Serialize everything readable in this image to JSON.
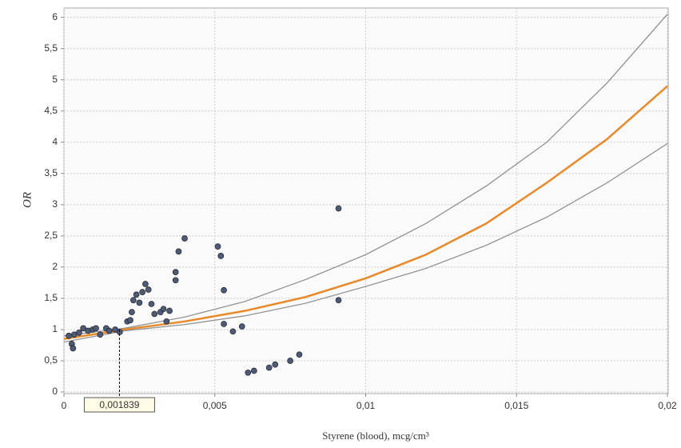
{
  "chart_data": {
    "type": "scatter",
    "xlabel": "Styrene (blood), mcg/cm³",
    "ylabel": "OR",
    "xlim": [
      0,
      0.02
    ],
    "ylim": [
      0,
      6.15
    ],
    "xticks": [
      0,
      {
        "value": 0.005,
        "label": "0,005"
      },
      {
        "value": 0.01,
        "label": "0,01"
      },
      {
        "value": 0.015,
        "label": "0,015"
      },
      {
        "value": 0.02,
        "label": "0,02"
      }
    ],
    "yticks": [
      0,
      {
        "value": 0.5,
        "label": "0,5"
      },
      1,
      {
        "value": 1.5,
        "label": "1,5"
      },
      2,
      {
        "value": 2.5,
        "label": "2,5"
      },
      3,
      {
        "value": 3.5,
        "label": "3,5"
      },
      4,
      {
        "value": 4.5,
        "label": "4,5"
      },
      5,
      {
        "value": 5.5,
        "label": "5,5"
      },
      6
    ],
    "grid": true,
    "points": {
      "color": "#4d5a78",
      "x": [
        0.00016,
        0.00026,
        0.0003,
        0.00034,
        0.0005,
        0.00064,
        0.0008,
        0.00095,
        0.00106,
        0.0012,
        0.0014,
        0.0015,
        0.0017,
        0.00185,
        0.0021,
        0.0022,
        0.00225,
        0.0023,
        0.0024,
        0.0025,
        0.0026,
        0.0027,
        0.0028,
        0.0029,
        0.003,
        0.0032,
        0.0033,
        0.0034,
        0.0035,
        0.0037,
        0.0037,
        0.0038,
        0.004,
        0.0051,
        0.0052,
        0.0053,
        0.0053,
        0.0056,
        0.0059,
        0.0061,
        0.0063,
        0.0068,
        0.007,
        0.0075,
        0.0078,
        0.0091,
        0.0091
      ],
      "y": [
        0.9,
        0.77,
        0.7,
        0.92,
        0.95,
        1.02,
        0.98,
        1.0,
        1.02,
        0.92,
        1.02,
        0.98,
        1.0,
        0.96,
        1.13,
        1.15,
        1.28,
        1.47,
        1.56,
        1.43,
        1.6,
        1.73,
        1.64,
        1.41,
        1.25,
        1.28,
        1.33,
        1.13,
        1.3,
        1.79,
        1.92,
        2.25,
        2.46,
        2.33,
        2.18,
        1.63,
        1.09,
        0.97,
        1.05,
        0.31,
        0.34,
        0.39,
        0.44,
        0.5,
        0.6,
        2.94,
        1.47
      ]
    },
    "curve_x": [
      0,
      0.002,
      0.004,
      0.006,
      0.008,
      0.01,
      0.012,
      0.014,
      0.016,
      0.018,
      0.02
    ],
    "series": [
      {
        "color": "#8a8a8a",
        "values": [
          0.9,
          1.02,
          1.2,
          1.45,
          1.8,
          2.2,
          2.7,
          3.3,
          4.0,
          4.95,
          6.05
        ]
      },
      {
        "color": "#e8892a",
        "values": [
          0.85,
          1.0,
          1.13,
          1.3,
          1.52,
          1.82,
          2.2,
          2.7,
          3.35,
          4.05,
          4.9
        ]
      },
      {
        "color": "#8a8a8a",
        "values": [
          0.8,
          0.98,
          1.08,
          1.22,
          1.42,
          1.69,
          1.98,
          2.35,
          2.8,
          3.35,
          3.98
        ]
      }
    ],
    "annotation": {
      "value": 0.001839,
      "label": "0,001839"
    }
  }
}
